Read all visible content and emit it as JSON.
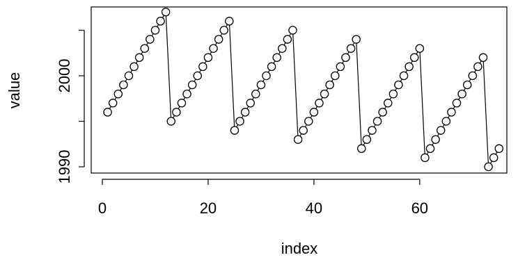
{
  "chart_data": {
    "type": "line",
    "title": "",
    "xlabel": "index",
    "ylabel": "value",
    "xlim": [
      1,
      75
    ],
    "ylim": [
      1990,
      2007
    ],
    "x_ticks": [
      0,
      20,
      40,
      60
    ],
    "y_ticks": [
      1990,
      2000
    ],
    "grid": false,
    "series": [
      {
        "marker": "open-circle",
        "line": "solid",
        "color": "#000000",
        "x": [
          1,
          2,
          3,
          4,
          5,
          6,
          7,
          8,
          9,
          10,
          11,
          12,
          13,
          14,
          15,
          16,
          17,
          18,
          19,
          20,
          21,
          22,
          23,
          24,
          25,
          26,
          27,
          28,
          29,
          30,
          31,
          32,
          33,
          34,
          35,
          36,
          37,
          38,
          39,
          40,
          41,
          42,
          43,
          44,
          45,
          46,
          47,
          48,
          49,
          50,
          51,
          52,
          53,
          54,
          55,
          56,
          57,
          58,
          59,
          60,
          61,
          62,
          63,
          64,
          65,
          66,
          67,
          68,
          69,
          70,
          71,
          72,
          73,
          74,
          75
        ],
        "y": [
          1996,
          1997,
          1998,
          1999,
          2000,
          2001,
          2002,
          2003,
          2004,
          2005,
          2006,
          2007,
          1995,
          1996,
          1997,
          1998,
          1999,
          2000,
          2001,
          2002,
          2003,
          2004,
          2005,
          2006,
          1994,
          1995,
          1996,
          1997,
          1998,
          1999,
          2000,
          2001,
          2002,
          2003,
          2004,
          2005,
          1993,
          1994,
          1995,
          1996,
          1997,
          1998,
          1999,
          2000,
          2001,
          2002,
          2003,
          2004,
          1992,
          1993,
          1994,
          1995,
          1996,
          1997,
          1998,
          1999,
          2000,
          2001,
          2002,
          2003,
          1991,
          1992,
          1993,
          1994,
          1995,
          1996,
          1997,
          1998,
          1999,
          2000,
          2001,
          2002,
          1990,
          1991,
          1992
        ]
      }
    ]
  }
}
